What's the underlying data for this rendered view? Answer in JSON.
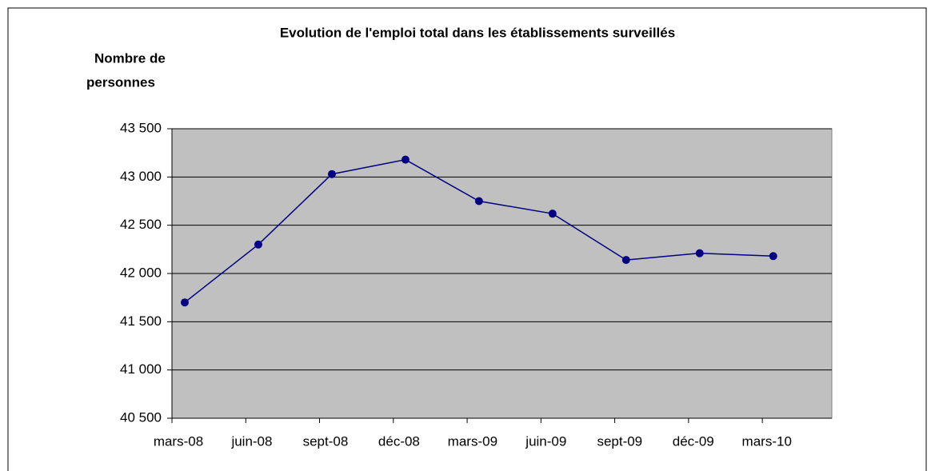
{
  "chart_data": {
    "type": "line",
    "title": "Evolution de l'emploi total dans les établissements surveillés",
    "y_label_lines": [
      "Nombre de",
      "personnes"
    ],
    "categories": [
      "mars-08",
      "juin-08",
      "sept-08",
      "déc-08",
      "mars-09",
      "juin-09",
      "sept-09",
      "déc-09",
      "mars-10"
    ],
    "series": [
      {
        "color": "#000080",
        "values": [
          41700,
          42300,
          43030,
          43180,
          42750,
          42620,
          42140,
          42210,
          42180
        ]
      }
    ],
    "ylim": [
      40500,
      43500
    ],
    "yticks": [
      {
        "value": 40500,
        "label": "40 500"
      },
      {
        "value": 41000,
        "label": "41 000"
      },
      {
        "value": 41500,
        "label": "41 500"
      },
      {
        "value": 42000,
        "label": "42 000"
      },
      {
        "value": 42500,
        "label": "42 500"
      },
      {
        "value": 43000,
        "label": "43 000"
      },
      {
        "value": 43500,
        "label": "43 500"
      }
    ],
    "grid": true,
    "plot_background": "#c0c0c0"
  }
}
